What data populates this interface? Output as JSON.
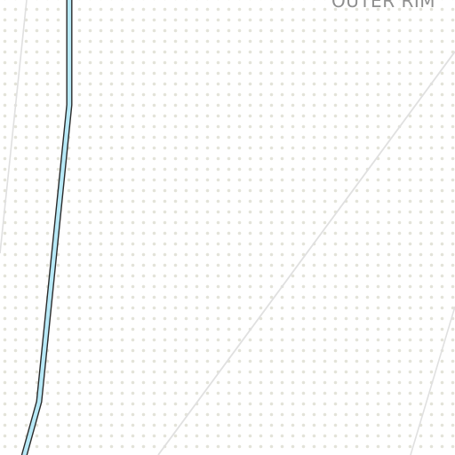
{
  "map": {
    "area_label": "OUTER RIM",
    "colors": {
      "background": "#ffffff",
      "dots": "#e3e3d9",
      "road": "#e0e0e0",
      "waterway_fill": "#b7e9f7",
      "waterway_outline": "#2b2b2b",
      "label": "#8e8e8e"
    }
  }
}
